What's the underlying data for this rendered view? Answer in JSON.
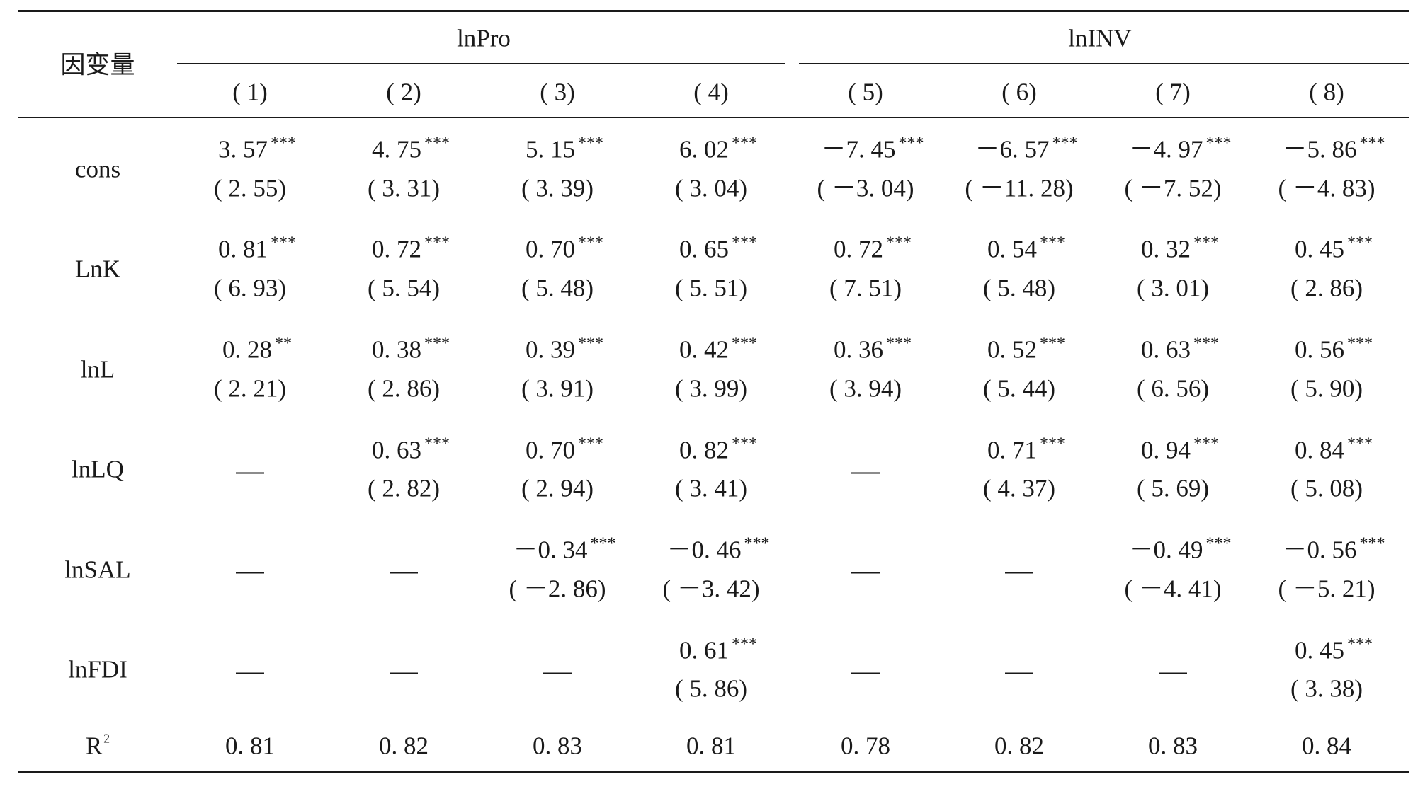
{
  "header": {
    "dep_var_label": "因变量",
    "group_left": "lnPro",
    "group_right": "lnINV",
    "columns": [
      "( 1)",
      "( 2)",
      "( 3)",
      "( 4)",
      "( 5)",
      "( 6)",
      "( 7)",
      "( 8)"
    ]
  },
  "rows": [
    {
      "label": "cons",
      "cells": [
        {
          "coef": "3. 57",
          "stars": "***",
          "t": "( 2. 55)"
        },
        {
          "coef": "4. 75",
          "stars": "***",
          "t": "( 3. 31)"
        },
        {
          "coef": "5. 15",
          "stars": "***",
          "t": "( 3. 39)"
        },
        {
          "coef": "6. 02",
          "stars": "***",
          "t": "( 3. 04)"
        },
        {
          "coef": "－7. 45",
          "stars": "***",
          "t": "(  －3. 04)"
        },
        {
          "coef": "－6. 57",
          "stars": "***",
          "t": "(  －11. 28)"
        },
        {
          "coef": "－4. 97",
          "stars": "***",
          "t": "(  －7. 52)"
        },
        {
          "coef": "－5. 86",
          "stars": "***",
          "t": "(  －4. 83)"
        }
      ]
    },
    {
      "label": "LnK",
      "cells": [
        {
          "coef": "0. 81",
          "stars": "***",
          "t": "( 6. 93)"
        },
        {
          "coef": "0. 72",
          "stars": "***",
          "t": "( 5. 54)"
        },
        {
          "coef": "0. 70",
          "stars": "***",
          "t": "( 5. 48)"
        },
        {
          "coef": "0. 65",
          "stars": "***",
          "t": "( 5. 51)"
        },
        {
          "coef": "0. 72",
          "stars": "***",
          "t": "( 7. 51)"
        },
        {
          "coef": "0. 54",
          "stars": "***",
          "t": "( 5. 48)"
        },
        {
          "coef": "0. 32",
          "stars": "***",
          "t": "( 3. 01)"
        },
        {
          "coef": "0. 45",
          "stars": "***",
          "t": "( 2. 86)"
        }
      ]
    },
    {
      "label": "lnL",
      "cells": [
        {
          "coef": "0. 28",
          "stars": "**",
          "t": "( 2. 21)"
        },
        {
          "coef": "0. 38",
          "stars": "***",
          "t": "( 2. 86)"
        },
        {
          "coef": "0. 39",
          "stars": "***",
          "t": "( 3. 91)"
        },
        {
          "coef": "0. 42",
          "stars": "***",
          "t": "( 3. 99)"
        },
        {
          "coef": "0. 36",
          "stars": "***",
          "t": "( 3. 94)"
        },
        {
          "coef": "0. 52",
          "stars": "***",
          "t": "( 5. 44)"
        },
        {
          "coef": "0. 63",
          "stars": "***",
          "t": "( 6. 56)"
        },
        {
          "coef": "0. 56",
          "stars": "***",
          "t": "( 5. 90)"
        }
      ]
    },
    {
      "label": "lnLQ",
      "cells": [
        {
          "dash": true
        },
        {
          "coef": "0. 63",
          "stars": "***",
          "t": "( 2. 82)"
        },
        {
          "coef": "0. 70",
          "stars": "***",
          "t": "( 2. 94)"
        },
        {
          "coef": "0. 82",
          "stars": "***",
          "t": "( 3. 41)"
        },
        {
          "dash": true
        },
        {
          "coef": "0. 71",
          "stars": "***",
          "t": "( 4. 37)"
        },
        {
          "coef": "0. 94",
          "stars": "***",
          "t": "( 5. 69)"
        },
        {
          "coef": "0. 84",
          "stars": "***",
          "t": "( 5. 08)"
        }
      ]
    },
    {
      "label": "lnSAL",
      "cells": [
        {
          "dash": true
        },
        {
          "dash": true
        },
        {
          "coef": "－0. 34",
          "stars": "***",
          "t": "(  －2. 86)"
        },
        {
          "coef": "－0. 46",
          "stars": "***",
          "t": "(  －3. 42)"
        },
        {
          "dash": true
        },
        {
          "dash": true
        },
        {
          "coef": "－0. 49",
          "stars": "***",
          "t": "(  －4. 41)"
        },
        {
          "coef": "－0. 56",
          "stars": "***",
          "t": "(  －5. 21)"
        }
      ]
    },
    {
      "label": "lnFDI",
      "cells": [
        {
          "dash": true
        },
        {
          "dash": true
        },
        {
          "dash": true
        },
        {
          "coef": "0. 61",
          "stars": "***",
          "t": "( 5. 86)"
        },
        {
          "dash": true
        },
        {
          "dash": true
        },
        {
          "dash": true
        },
        {
          "coef": "0. 45",
          "stars": "***",
          "t": "( 3. 38)"
        }
      ]
    }
  ],
  "r2": {
    "label": "R",
    "label_sup": "2",
    "values": [
      "0. 81",
      "0. 82",
      "0. 83",
      "0. 81",
      "0. 78",
      "0. 82",
      "0. 83",
      "0. 84"
    ]
  }
}
